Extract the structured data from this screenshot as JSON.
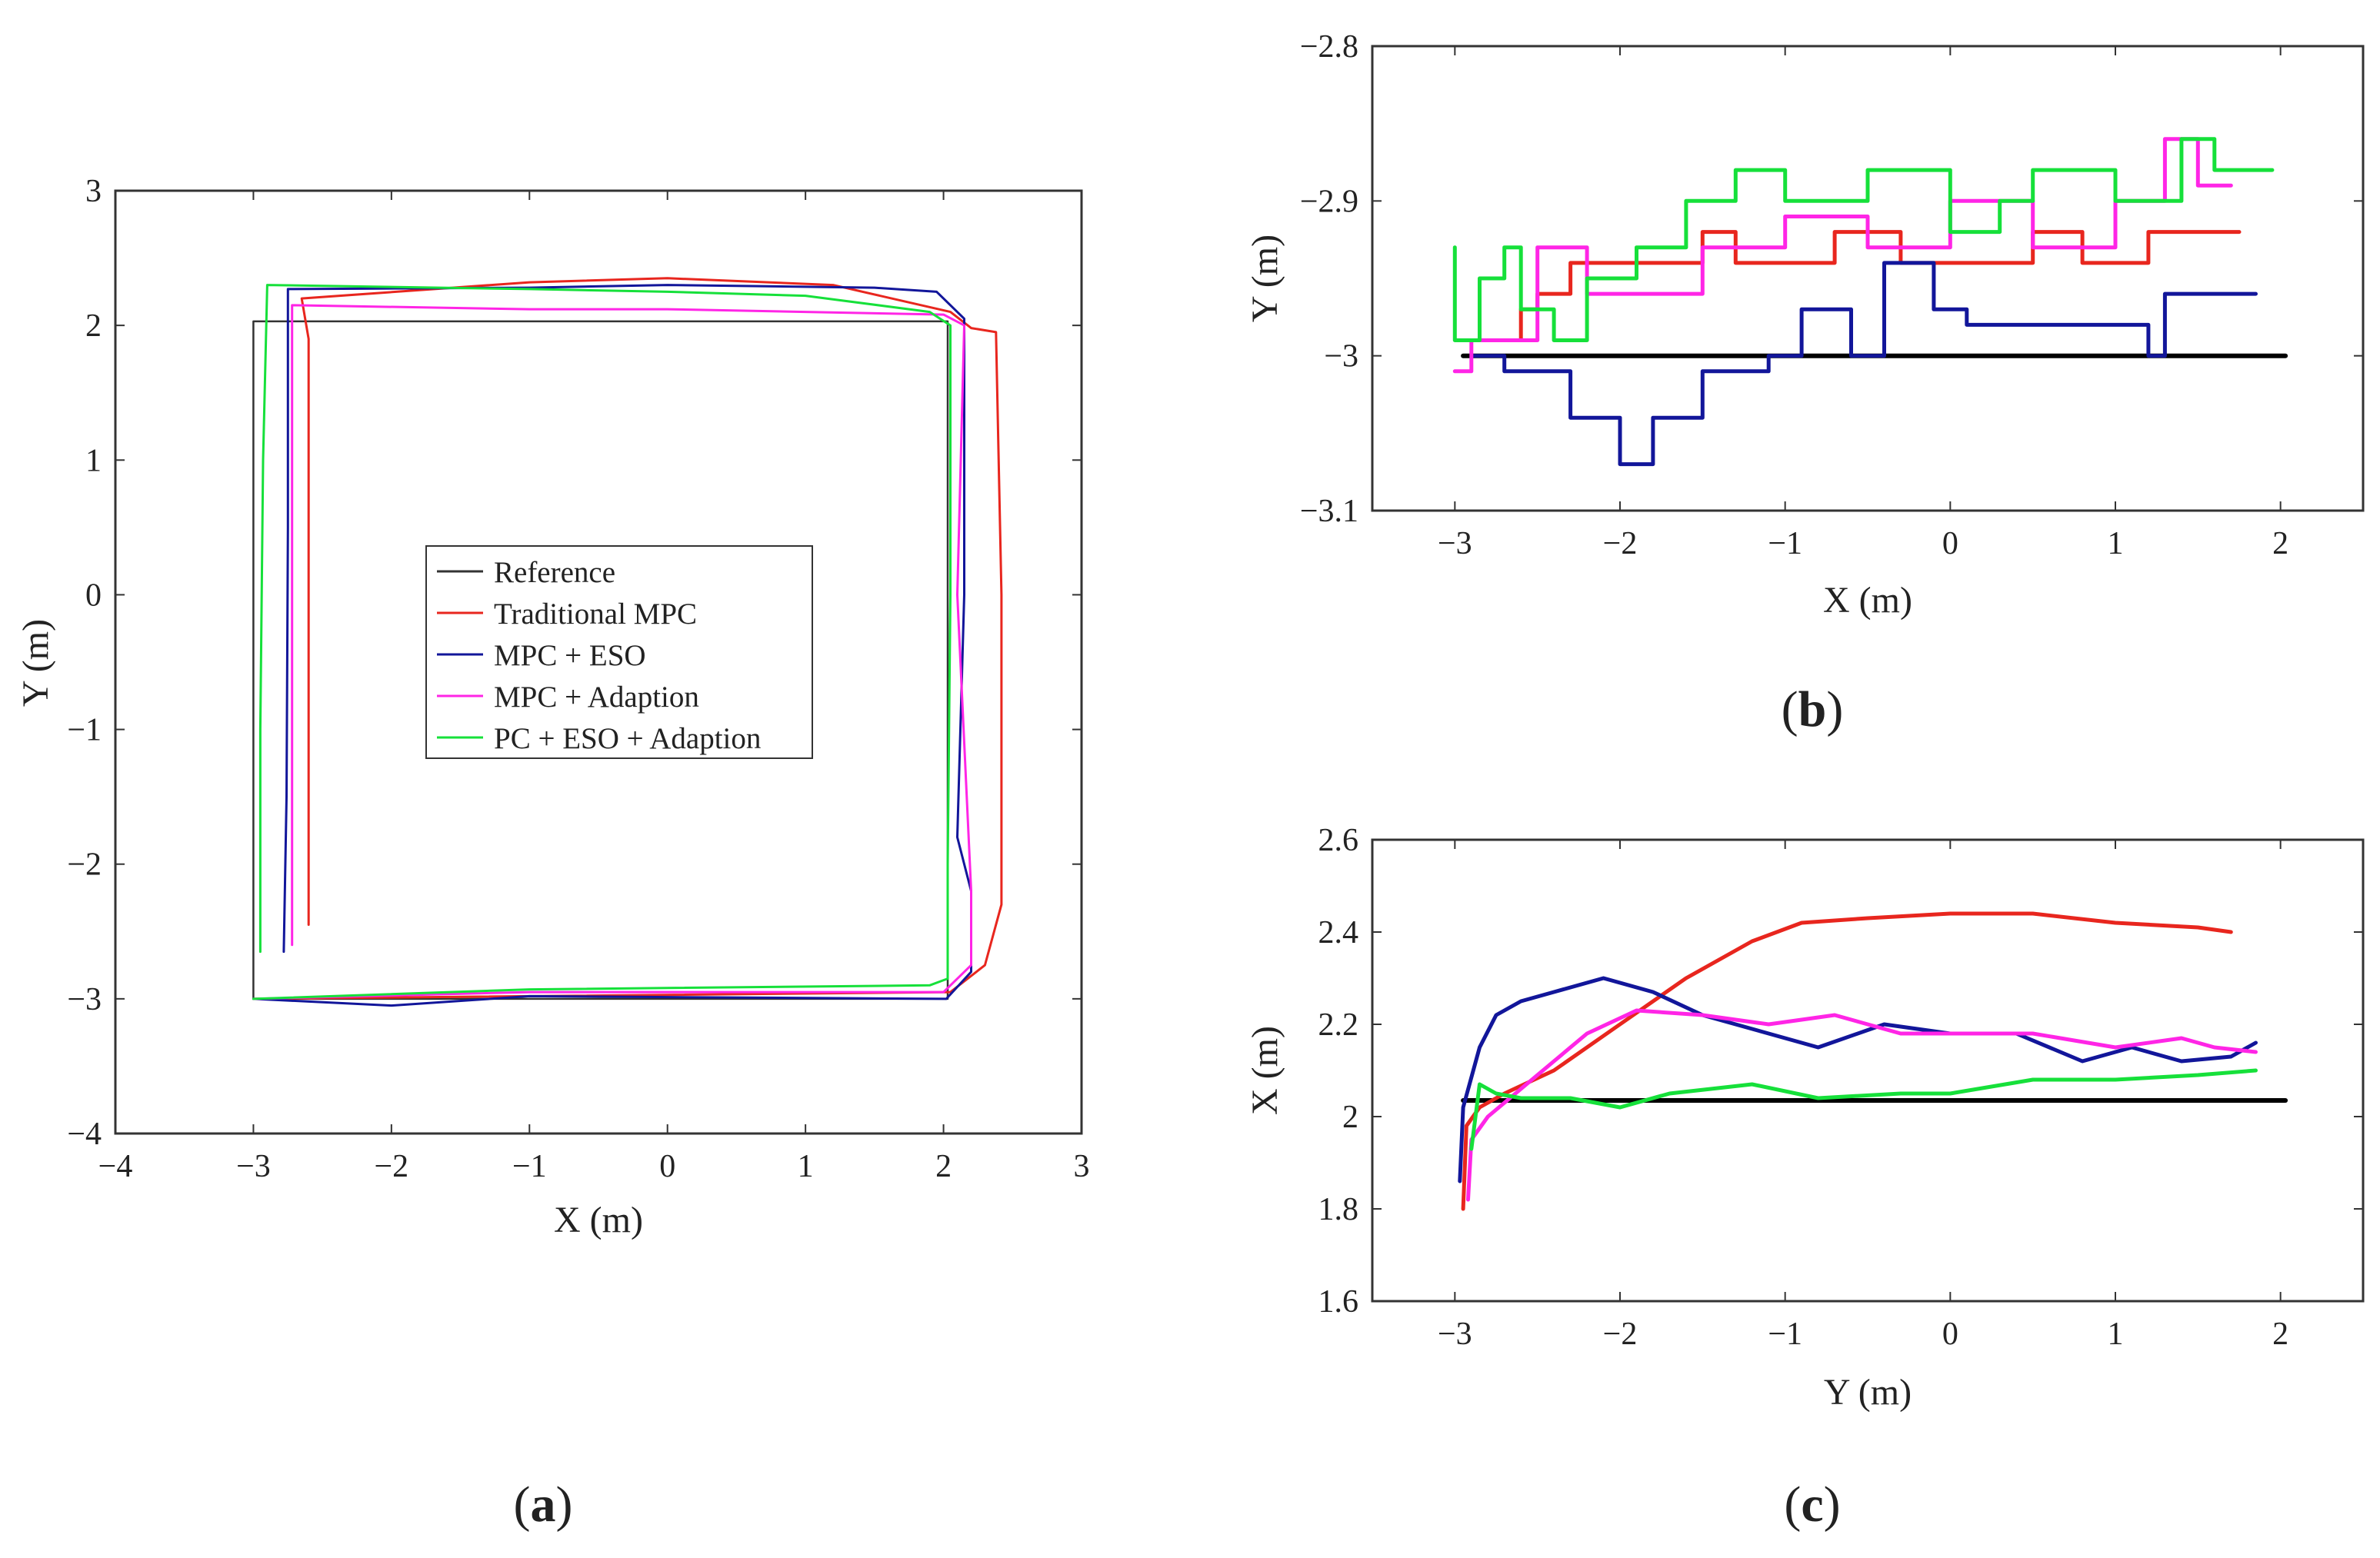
{
  "colors": {
    "reference": "#333333",
    "traditional_mpc": "#e8261e",
    "mpc_eso": "#12169a",
    "mpc_adaption": "#ff25e6",
    "pc_eso_adaption": "#16e03a",
    "ref_thick": "#000000"
  },
  "captions": {
    "a": "a",
    "b": "b",
    "c": "c"
  },
  "chart_data": [
    {
      "id": "a",
      "type": "line",
      "xlabel": "X (m)",
      "ylabel": "Y (m)",
      "xlim": [
        -4,
        3
      ],
      "ylim": [
        -4,
        3
      ],
      "xticks": [
        "−4",
        "−3",
        "−2",
        "−1",
        "0",
        "1",
        "2",
        "3"
      ],
      "yticks": [
        "−4",
        "−3",
        "−2",
        "−1",
        "0",
        "1",
        "2",
        "3"
      ],
      "xtick_values": [
        -4,
        -3,
        -2,
        -1,
        0,
        1,
        2,
        3
      ],
      "ytick_values": [
        -4,
        -3,
        -2,
        -1,
        0,
        1,
        2,
        3
      ],
      "legend_position": "center",
      "legend": [
        "Reference",
        "Traditional MPC",
        "MPC + ESO",
        "MPC + Adaption",
        "PC + ESO + Adaption"
      ],
      "series": [
        {
          "name": "Reference",
          "color_key": "reference",
          "x": [
            -3,
            -3,
            2.03,
            2.03,
            -3
          ],
          "y": [
            -3,
            2.03,
            2.03,
            -3,
            -3
          ]
        },
        {
          "name": "Traditional MPC",
          "color_key": "traditional_mpc",
          "x": [
            -2.6,
            -2.6,
            -2.6,
            -2.65,
            -1,
            0,
            1.2,
            2.05,
            2.2,
            2.38,
            2.42,
            2.42,
            2.3,
            2.05,
            -3
          ],
          "y": [
            -2.45,
            0,
            1.9,
            2.2,
            2.32,
            2.35,
            2.3,
            2.1,
            1.98,
            1.95,
            0,
            -2.3,
            -2.75,
            -2.95,
            -3
          ]
        },
        {
          "name": "MPC + ESO",
          "color_key": "mpc_eso",
          "x": [
            -2.78,
            -2.76,
            -2.75,
            -2.75,
            -1,
            0,
            1.5,
            1.95,
            2.15,
            2.15,
            2.1,
            2.2,
            2.2,
            2.02,
            -1,
            -2,
            -3
          ],
          "y": [
            -2.65,
            -1.5,
            0.5,
            2.27,
            2.28,
            2.3,
            2.28,
            2.25,
            2.05,
            0,
            -1.8,
            -2.2,
            -2.8,
            -3,
            -2.98,
            -3.05,
            -3
          ]
        },
        {
          "name": "MPC + Adaption",
          "color_key": "mpc_adaption",
          "x": [
            -2.72,
            -2.72,
            -2.72,
            -1,
            0,
            1,
            2.0,
            2.15,
            2.1,
            2.2,
            2.2,
            2.0,
            -1,
            -3
          ],
          "y": [
            -2.6,
            0,
            2.15,
            2.12,
            2.12,
            2.1,
            2.08,
            2.0,
            0,
            -2.2,
            -2.75,
            -2.95,
            -2.95,
            -3
          ]
        },
        {
          "name": "PC + ESO + Adaption",
          "color_key": "pc_eso_adaption",
          "x": [
            -2.95,
            -2.95,
            -2.93,
            -2.9,
            -1,
            0,
            1,
            1.9,
            2.05,
            2.05,
            2.03,
            2.03,
            1.9,
            -1,
            -3
          ],
          "y": [
            -2.65,
            -1,
            1.0,
            2.3,
            2.27,
            2.25,
            2.22,
            2.1,
            2.0,
            0,
            -2.0,
            -2.85,
            -2.9,
            -2.93,
            -3
          ]
        }
      ]
    },
    {
      "id": "b",
      "type": "line",
      "xlabel": "X (m)",
      "ylabel": "Y (m)",
      "xlim": [
        -3.5,
        2.5
      ],
      "ylim": [
        -3.1,
        -2.8
      ],
      "xticks": [
        "−3",
        "−2",
        "−1",
        "0",
        "1",
        "2"
      ],
      "yticks": [
        "−3.1",
        "−3",
        "−2.9",
        "−2.8"
      ],
      "xtick_values": [
        -3,
        -2,
        -1,
        0,
        1,
        2
      ],
      "ytick_values": [
        -3.1,
        -3,
        -2.9,
        -2.8
      ],
      "series": [
        {
          "name": "Reference",
          "color_key": "ref_thick",
          "x": [
            -2.95,
            2.03
          ],
          "y": [
            -3.0,
            -3.0
          ]
        },
        {
          "name": "Traditional MPC",
          "color_key": "traditional_mpc",
          "x": [
            -2.95,
            -2.6,
            -2.6,
            -2.5,
            -2.5,
            -2.3,
            -2.3,
            -1.5,
            -1.5,
            -1.3,
            -1.3,
            -0.7,
            -0.7,
            -0.5,
            -0.3,
            -0.3,
            0.5,
            0.5,
            0.8,
            0.8,
            1.2,
            1.2,
            1.4,
            1.4,
            1.75
          ],
          "y": [
            -2.99,
            -2.99,
            -2.97,
            -2.97,
            -2.96,
            -2.96,
            -2.94,
            -2.94,
            -2.92,
            -2.92,
            -2.94,
            -2.94,
            -2.92,
            -2.92,
            -2.92,
            -2.94,
            -2.94,
            -2.92,
            -2.92,
            -2.94,
            -2.94,
            -2.92,
            -2.92,
            -2.92,
            -2.92
          ]
        },
        {
          "name": "MPC + ESO",
          "color_key": "mpc_eso",
          "x": [
            -2.9,
            -2.7,
            -2.7,
            -2.3,
            -2.3,
            -2.0,
            -2.0,
            -1.8,
            -1.8,
            -1.5,
            -1.5,
            -1.1,
            -1.1,
            -0.9,
            -0.9,
            -0.6,
            -0.6,
            -0.4,
            -0.4,
            -0.1,
            -0.1,
            0.1,
            0.1,
            1.2,
            1.2,
            1.3,
            1.3,
            1.85
          ],
          "y": [
            -3.0,
            -3.0,
            -3.01,
            -3.01,
            -3.04,
            -3.04,
            -3.07,
            -3.07,
            -3.04,
            -3.04,
            -3.01,
            -3.01,
            -3.0,
            -3.0,
            -2.97,
            -2.97,
            -3.0,
            -3.0,
            -2.94,
            -2.94,
            -2.97,
            -2.97,
            -2.98,
            -2.98,
            -3.0,
            -3.0,
            -2.96,
            -2.96
          ]
        },
        {
          "name": "MPC + Adaption",
          "color_key": "mpc_adaption",
          "x": [
            -3.0,
            -2.9,
            -2.9,
            -2.5,
            -2.5,
            -2.2,
            -2.2,
            -1.5,
            -1.5,
            -1.0,
            -1.0,
            -0.5,
            -0.5,
            0.0,
            0.0,
            0.5,
            0.5,
            1.0,
            1.0,
            1.3,
            1.3,
            1.5,
            1.5,
            1.7
          ],
          "y": [
            -3.01,
            -3.01,
            -2.99,
            -2.99,
            -2.93,
            -2.93,
            -2.96,
            -2.96,
            -2.93,
            -2.93,
            -2.91,
            -2.91,
            -2.93,
            -2.93,
            -2.9,
            -2.9,
            -2.93,
            -2.93,
            -2.9,
            -2.9,
            -2.86,
            -2.86,
            -2.89,
            -2.89
          ]
        },
        {
          "name": "PC + ESO + Adaption",
          "color_key": "pc_eso_adaption",
          "x": [
            -3.0,
            -3.0,
            -2.85,
            -2.85,
            -2.7,
            -2.7,
            -2.6,
            -2.6,
            -2.4,
            -2.4,
            -2.2,
            -2.2,
            -1.9,
            -1.9,
            -1.6,
            -1.6,
            -1.3,
            -1.3,
            -1.0,
            -1.0,
            -0.5,
            -0.5,
            0.0,
            0.0,
            0.3,
            0.3,
            0.5,
            0.5,
            1.0,
            1.0,
            1.4,
            1.4,
            1.6,
            1.6,
            1.95
          ],
          "y": [
            -2.93,
            -2.99,
            -2.99,
            -2.95,
            -2.95,
            -2.93,
            -2.93,
            -2.97,
            -2.97,
            -2.99,
            -2.99,
            -2.95,
            -2.95,
            -2.93,
            -2.93,
            -2.9,
            -2.9,
            -2.88,
            -2.88,
            -2.9,
            -2.9,
            -2.88,
            -2.88,
            -2.92,
            -2.92,
            -2.9,
            -2.9,
            -2.88,
            -2.88,
            -2.9,
            -2.9,
            -2.86,
            -2.86,
            -2.88,
            -2.88
          ]
        }
      ]
    },
    {
      "id": "c",
      "type": "line",
      "xlabel": "Y (m)",
      "ylabel": "X (m)",
      "xlim": [
        -3.5,
        2.5
      ],
      "ylim": [
        1.6,
        2.6
      ],
      "xticks": [
        "−3",
        "−2",
        "−1",
        "0",
        "1",
        "2"
      ],
      "yticks": [
        "1.6",
        "1.8",
        "2",
        "2.2",
        "2.4",
        "2.6"
      ],
      "xtick_values": [
        -3,
        -2,
        -1,
        0,
        1,
        2
      ],
      "ytick_values": [
        1.6,
        1.8,
        2.0,
        2.2,
        2.4,
        2.6
      ],
      "series": [
        {
          "name": "Reference",
          "color_key": "ref_thick",
          "x": [
            -2.95,
            2.03
          ],
          "y": [
            2.035,
            2.035
          ]
        },
        {
          "name": "Traditional MPC",
          "color_key": "traditional_mpc",
          "x": [
            -2.95,
            -2.93,
            -2.85,
            -2.7,
            -2.4,
            -2.0,
            -1.6,
            -1.2,
            -0.9,
            -0.5,
            0.0,
            0.5,
            1.0,
            1.5,
            1.7
          ],
          "y": [
            1.8,
            1.98,
            2.02,
            2.05,
            2.1,
            2.2,
            2.3,
            2.38,
            2.42,
            2.43,
            2.44,
            2.44,
            2.42,
            2.41,
            2.4
          ]
        },
        {
          "name": "MPC + ESO",
          "color_key": "mpc_eso",
          "x": [
            -2.97,
            -2.95,
            -2.85,
            -2.75,
            -2.6,
            -2.4,
            -2.1,
            -1.8,
            -1.5,
            -1.1,
            -0.8,
            -0.4,
            0.0,
            0.4,
            0.8,
            1.1,
            1.4,
            1.7,
            1.85
          ],
          "y": [
            1.86,
            2.02,
            2.15,
            2.22,
            2.25,
            2.27,
            2.3,
            2.27,
            2.22,
            2.18,
            2.15,
            2.2,
            2.18,
            2.18,
            2.12,
            2.15,
            2.12,
            2.13,
            2.16
          ]
        },
        {
          "name": "MPC + Adaption",
          "color_key": "mpc_adaption",
          "x": [
            -2.92,
            -2.9,
            -2.8,
            -2.6,
            -2.4,
            -2.2,
            -1.9,
            -1.5,
            -1.1,
            -0.7,
            -0.3,
            0.0,
            0.5,
            1.0,
            1.4,
            1.6,
            1.85
          ],
          "y": [
            1.82,
            1.95,
            2.0,
            2.06,
            2.12,
            2.18,
            2.23,
            2.22,
            2.2,
            2.22,
            2.18,
            2.18,
            2.18,
            2.15,
            2.17,
            2.15,
            2.14
          ]
        },
        {
          "name": "PC + ESO + Adaption",
          "color_key": "pc_eso_adaption",
          "x": [
            -2.9,
            -2.85,
            -2.75,
            -2.6,
            -2.3,
            -2.0,
            -1.7,
            -1.2,
            -0.8,
            -0.3,
            0.0,
            0.5,
            1.0,
            1.5,
            1.85
          ],
          "y": [
            1.93,
            2.07,
            2.05,
            2.04,
            2.04,
            2.02,
            2.05,
            2.07,
            2.04,
            2.05,
            2.05,
            2.08,
            2.08,
            2.09,
            2.1
          ]
        }
      ]
    }
  ]
}
